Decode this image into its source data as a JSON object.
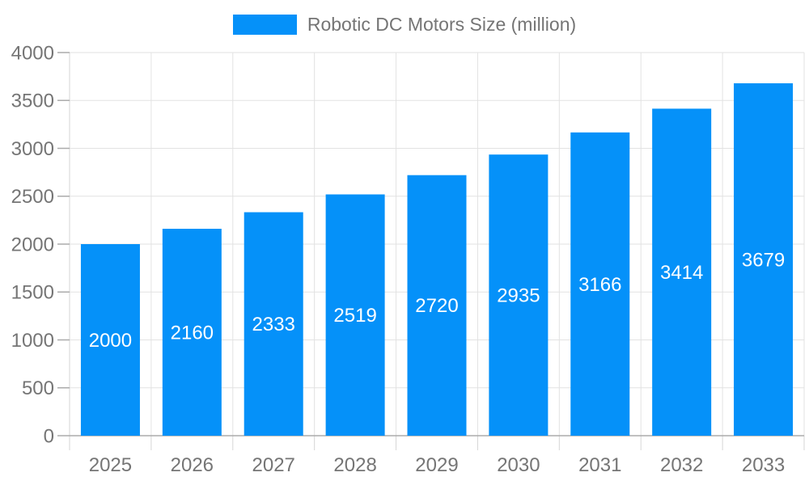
{
  "chart_data": {
    "type": "bar",
    "title": "Robotic DC Motors Size (million)",
    "categories": [
      "2025",
      "2026",
      "2027",
      "2028",
      "2029",
      "2030",
      "2031",
      "2032",
      "2033"
    ],
    "values": [
      2000,
      2160,
      2333,
      2519,
      2720,
      2935,
      3166,
      3414,
      3679
    ],
    "xlabel": "",
    "ylabel": "",
    "ylim": [
      0,
      4000
    ],
    "yticks": [
      0,
      500,
      1000,
      1500,
      2000,
      2500,
      3000,
      3500,
      4000
    ],
    "grid": true,
    "legend_position": "top-center",
    "value_label_position": "inside-center",
    "colors": {
      "bar": "#0591F9",
      "bar_value_text": "#FFFFFF",
      "axis_text": "#757575",
      "grid_line": "#E2E2E2",
      "axis_line": "#ABABAB",
      "tick_line": "#D6D6D6",
      "background": "#FFFFFF"
    }
  },
  "legend": {
    "label": "Robotic DC Motors Size (million)",
    "swatch_color": "#0591F9"
  }
}
